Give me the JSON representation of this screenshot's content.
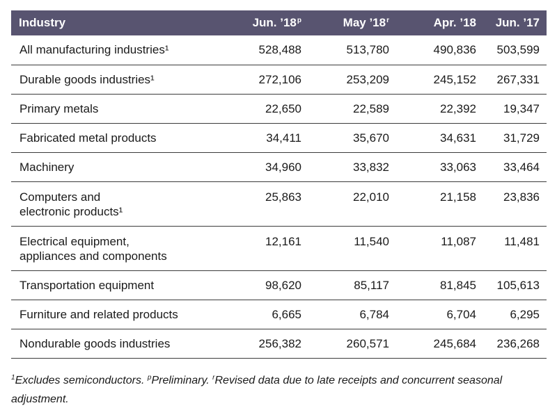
{
  "table": {
    "headers": {
      "industry": "Industry",
      "col1": "Jun. ’18",
      "col1_mark": "p",
      "col2": "May ’18",
      "col2_mark": "r",
      "col3": "Apr. ’18",
      "col4": "Jun. ’17"
    },
    "rows": [
      {
        "industry": "All manufacturing industries¹",
        "v1": "528,488",
        "v2": "513,780",
        "v3": "490,836",
        "v4": "503,599"
      },
      {
        "industry": "Durable goods industries¹",
        "v1": "272,106",
        "v2": "253,209",
        "v3": "245,152",
        "v4": "267,331"
      },
      {
        "industry": "Primary metals",
        "v1": "22,650",
        "v2": "22,589",
        "v3": "22,392",
        "v4": "19,347"
      },
      {
        "industry": "Fabricated metal products",
        "v1": "34,411",
        "v2": "35,670",
        "v3": "34,631",
        "v4": "31,729"
      },
      {
        "industry": "Machinery",
        "v1": "34,960",
        "v2": "33,832",
        "v3": "33,063",
        "v4": "33,464"
      },
      {
        "industry_line1": "Computers and",
        "industry_line2": "electronic products¹",
        "v1": "25,863",
        "v2": "22,010",
        "v3": "21,158",
        "v4": "23,836"
      },
      {
        "industry_line1": "Electrical equipment,",
        "industry_line2": "appliances and components",
        "v1": "12,161",
        "v2": "11,540",
        "v3": "11,087",
        "v4": "11,481"
      },
      {
        "industry": "Transportation equipment",
        "v1": "98,620",
        "v2": "85,117",
        "v3": "81,845",
        "v4": "105,613"
      },
      {
        "industry": "Furniture and related products",
        "v1": "6,665",
        "v2": "6,784",
        "v3": "6,704",
        "v4": "6,295"
      },
      {
        "industry": "Nondurable goods industries",
        "v1": "256,382",
        "v2": "260,571",
        "v3": "245,684",
        "v4": "236,268"
      }
    ]
  },
  "footnote": {
    "mark1": "1",
    "text1": "Excludes semiconductors. ",
    "mark2": "p",
    "text2": "Preliminary. ",
    "mark3": "r",
    "text3": "Revised data due to late receipts and concurrent seasonal adjustment."
  }
}
